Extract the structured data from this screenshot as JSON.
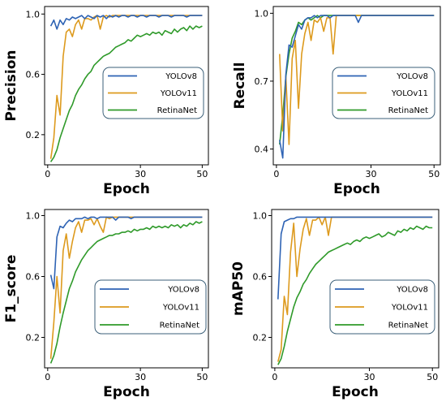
{
  "colors": {
    "YOLOv8": "#2e63b4",
    "YOLOv11": "#dd9a1d",
    "RetinaNet": "#2f9a2a"
  },
  "chart_data": [
    {
      "type": "line",
      "xlabel": "Epoch",
      "ylabel": "Precision",
      "xlim": [
        -1,
        52
      ],
      "ylim": [
        0.0,
        1.05
      ],
      "xticks": [
        0,
        30,
        50
      ],
      "yticks": [
        0.2,
        0.6,
        1.0
      ],
      "ytick_labels": [
        "0.2",
        "0.6",
        "1.0"
      ],
      "legend_location": "center-right",
      "x": [
        1,
        2,
        3,
        4,
        5,
        6,
        7,
        8,
        9,
        10,
        11,
        12,
        13,
        14,
        15,
        16,
        17,
        18,
        19,
        20,
        21,
        22,
        23,
        24,
        25,
        26,
        27,
        28,
        29,
        30,
        31,
        32,
        33,
        34,
        35,
        36,
        37,
        38,
        39,
        40,
        41,
        42,
        43,
        44,
        45,
        46,
        47,
        48,
        49,
        50
      ],
      "series": [
        {
          "name": "YOLOv8",
          "values": [
            0.92,
            0.96,
            0.9,
            0.96,
            0.93,
            0.97,
            0.96,
            0.98,
            0.97,
            0.98,
            0.99,
            0.97,
            0.99,
            0.98,
            0.97,
            0.99,
            0.98,
            0.99,
            0.97,
            0.99,
            0.98,
            0.99,
            0.98,
            0.99,
            0.99,
            0.98,
            0.99,
            0.99,
            0.98,
            0.99,
            0.99,
            0.98,
            0.99,
            0.99,
            0.99,
            0.98,
            0.99,
            0.99,
            0.99,
            0.98,
            0.99,
            0.99,
            0.99,
            0.99,
            0.98,
            0.99,
            0.99,
            0.99,
            0.99,
            0.99
          ]
        },
        {
          "name": "YOLOv11",
          "values": [
            0.04,
            0.18,
            0.46,
            0.33,
            0.72,
            0.88,
            0.9,
            0.85,
            0.93,
            0.96,
            0.9,
            0.97,
            0.97,
            0.96,
            0.98,
            0.99,
            0.9,
            0.98,
            0.99,
            0.98,
            0.99,
            0.99,
            0.99,
            0.99,
            0.99,
            0.99,
            0.99,
            0.99,
            0.99,
            0.99,
            0.99,
            0.99,
            0.99,
            0.99,
            0.99,
            0.99,
            0.99,
            0.99,
            0.99,
            0.99,
            0.99,
            0.99,
            0.99,
            0.99,
            0.99,
            0.99,
            0.99,
            0.99,
            0.99,
            0.99
          ]
        },
        {
          "name": "RetinaNet",
          "values": [
            0.02,
            0.05,
            0.1,
            0.18,
            0.24,
            0.3,
            0.36,
            0.4,
            0.46,
            0.5,
            0.53,
            0.57,
            0.6,
            0.62,
            0.66,
            0.68,
            0.7,
            0.72,
            0.73,
            0.74,
            0.76,
            0.78,
            0.79,
            0.8,
            0.81,
            0.83,
            0.82,
            0.84,
            0.86,
            0.85,
            0.86,
            0.87,
            0.86,
            0.88,
            0.87,
            0.88,
            0.86,
            0.89,
            0.88,
            0.87,
            0.9,
            0.88,
            0.9,
            0.91,
            0.89,
            0.92,
            0.9,
            0.92,
            0.91,
            0.92
          ]
        }
      ]
    },
    {
      "type": "line",
      "xlabel": "Epoch",
      "ylabel": "Recall",
      "xlim": [
        -1,
        52
      ],
      "ylim": [
        0.33,
        1.03
      ],
      "xticks": [
        0,
        30,
        50
      ],
      "yticks": [
        0.4,
        0.7,
        1.0
      ],
      "ytick_labels": [
        "0.4",
        "0.7",
        "1.0"
      ],
      "legend_location": "center-right",
      "x": [
        1,
        2,
        3,
        4,
        5,
        6,
        7,
        8,
        9,
        10,
        11,
        12,
        13,
        14,
        15,
        16,
        17,
        18,
        19,
        20,
        21,
        22,
        23,
        24,
        25,
        26,
        27,
        28,
        29,
        30,
        31,
        32,
        33,
        34,
        35,
        36,
        37,
        38,
        39,
        40,
        41,
        42,
        43,
        44,
        45,
        46,
        47,
        48,
        49,
        50
      ],
      "series": [
        {
          "name": "YOLOv8",
          "values": [
            0.44,
            0.36,
            0.73,
            0.86,
            0.85,
            0.9,
            0.95,
            0.93,
            0.97,
            0.98,
            0.98,
            0.99,
            0.98,
            0.99,
            0.99,
            0.99,
            0.98,
            0.99,
            0.99,
            0.99,
            0.99,
            0.99,
            0.99,
            0.99,
            0.99,
            0.96,
            0.99,
            0.99,
            0.99,
            0.99,
            0.99,
            0.99,
            0.99,
            0.99,
            0.99,
            0.99,
            0.99,
            0.99,
            0.99,
            0.99,
            0.99,
            0.99,
            0.99,
            0.99,
            0.99,
            0.99,
            0.99,
            0.99,
            0.99,
            0.99
          ]
        },
        {
          "name": "YOLOv11",
          "values": [
            0.82,
            0.48,
            0.72,
            0.42,
            0.8,
            0.88,
            0.58,
            0.82,
            0.91,
            0.96,
            0.88,
            0.97,
            0.96,
            0.98,
            0.92,
            0.98,
            0.98,
            0.82,
            0.99,
            0.99,
            0.99,
            0.99,
            0.99,
            0.99,
            0.99,
            0.99,
            0.99,
            0.99,
            0.99,
            0.99,
            0.99,
            0.99,
            0.99,
            0.99,
            0.99,
            0.99,
            0.99,
            0.99,
            0.99,
            0.99,
            0.99,
            0.99,
            0.99,
            0.99,
            0.99,
            0.99,
            0.99,
            0.99,
            0.99,
            0.99
          ]
        },
        {
          "name": "RetinaNet",
          "values": [
            0.42,
            0.55,
            0.72,
            0.82,
            0.89,
            0.92,
            0.96,
            0.95,
            0.97,
            0.98,
            0.97,
            0.98,
            0.99,
            0.98,
            0.99,
            0.99,
            0.99,
            0.99,
            0.99,
            0.99,
            0.99,
            0.99,
            0.99,
            0.99,
            0.99,
            0.99,
            0.99,
            0.99,
            0.99,
            0.99,
            0.99,
            0.99,
            0.99,
            0.99,
            0.99,
            0.99,
            0.99,
            0.99,
            0.99,
            0.99,
            0.99,
            0.99,
            0.99,
            0.99,
            0.99,
            0.99,
            0.99,
            0.99,
            0.99,
            0.99
          ]
        }
      ]
    },
    {
      "type": "line",
      "xlabel": "Epoch",
      "ylabel": "F1_score",
      "xlim": [
        -1,
        52
      ],
      "ylim": [
        0.0,
        1.04
      ],
      "xticks": [
        0,
        30,
        50
      ],
      "yticks": [
        0.2,
        0.6,
        1.0
      ],
      "ytick_labels": [
        "0.2",
        "0.6",
        "1.0"
      ],
      "legend_location": "center-right",
      "x": [
        1,
        2,
        3,
        4,
        5,
        6,
        7,
        8,
        9,
        10,
        11,
        12,
        13,
        14,
        15,
        16,
        17,
        18,
        19,
        20,
        21,
        22,
        23,
        24,
        25,
        26,
        27,
        28,
        29,
        30,
        31,
        32,
        33,
        34,
        35,
        36,
        37,
        38,
        39,
        40,
        41,
        42,
        43,
        44,
        45,
        46,
        47,
        48,
        49,
        50
      ],
      "series": [
        {
          "name": "YOLOv8",
          "values": [
            0.61,
            0.52,
            0.86,
            0.93,
            0.92,
            0.95,
            0.97,
            0.96,
            0.98,
            0.98,
            0.98,
            0.99,
            0.98,
            0.99,
            0.99,
            0.98,
            0.99,
            0.99,
            0.99,
            0.99,
            0.99,
            0.97,
            0.99,
            0.99,
            0.99,
            0.99,
            0.98,
            0.99,
            0.99,
            0.99,
            0.99,
            0.99,
            0.99,
            0.99,
            0.99,
            0.99,
            0.99,
            0.99,
            0.99,
            0.99,
            0.99,
            0.99,
            0.99,
            0.99,
            0.99,
            0.99,
            0.99,
            0.99,
            0.99,
            0.99
          ]
        },
        {
          "name": "YOLOv11",
          "values": [
            0.06,
            0.3,
            0.6,
            0.36,
            0.77,
            0.88,
            0.72,
            0.83,
            0.92,
            0.96,
            0.89,
            0.97,
            0.97,
            0.98,
            0.94,
            0.98,
            0.93,
            0.89,
            0.99,
            0.98,
            0.99,
            0.99,
            0.99,
            0.99,
            0.99,
            0.99,
            0.99,
            0.99,
            0.99,
            0.99,
            0.99,
            0.99,
            0.99,
            0.99,
            0.99,
            0.99,
            0.99,
            0.99,
            0.99,
            0.99,
            0.99,
            0.99,
            0.99,
            0.99,
            0.99,
            0.99,
            0.99,
            0.99,
            0.99,
            0.99
          ]
        },
        {
          "name": "RetinaNet",
          "values": [
            0.03,
            0.08,
            0.16,
            0.27,
            0.36,
            0.44,
            0.52,
            0.57,
            0.63,
            0.67,
            0.71,
            0.74,
            0.77,
            0.79,
            0.81,
            0.83,
            0.84,
            0.85,
            0.86,
            0.87,
            0.87,
            0.88,
            0.88,
            0.89,
            0.89,
            0.9,
            0.89,
            0.91,
            0.9,
            0.91,
            0.91,
            0.92,
            0.91,
            0.93,
            0.92,
            0.93,
            0.92,
            0.93,
            0.92,
            0.94,
            0.93,
            0.94,
            0.92,
            0.94,
            0.93,
            0.95,
            0.94,
            0.96,
            0.95,
            0.96
          ]
        }
      ]
    },
    {
      "type": "line",
      "xlabel": "Epoch",
      "ylabel": "mAP50",
      "xlim": [
        -1,
        52
      ],
      "ylim": [
        0.0,
        1.04
      ],
      "xticks": [
        0,
        30,
        50
      ],
      "yticks": [
        0.2,
        0.6,
        1.0
      ],
      "ytick_labels": [
        "0.2",
        "0.6",
        "1.0"
      ],
      "legend_location": "center-right",
      "x": [
        1,
        2,
        3,
        4,
        5,
        6,
        7,
        8,
        9,
        10,
        11,
        12,
        13,
        14,
        15,
        16,
        17,
        18,
        19,
        20,
        21,
        22,
        23,
        24,
        25,
        26,
        27,
        28,
        29,
        30,
        31,
        32,
        33,
        34,
        35,
        36,
        37,
        38,
        39,
        40,
        41,
        42,
        43,
        44,
        45,
        46,
        47,
        48,
        49,
        50
      ],
      "series": [
        {
          "name": "YOLOv8",
          "values": [
            0.45,
            0.88,
            0.96,
            0.97,
            0.98,
            0.98,
            0.99,
            0.99,
            0.99,
            0.99,
            0.99,
            0.99,
            0.99,
            0.99,
            0.99,
            0.99,
            0.99,
            0.99,
            0.99,
            0.99,
            0.99,
            0.99,
            0.99,
            0.99,
            0.99,
            0.99,
            0.99,
            0.99,
            0.99,
            0.99,
            0.99,
            0.99,
            0.99,
            0.99,
            0.99,
            0.99,
            0.99,
            0.99,
            0.99,
            0.99,
            0.99,
            0.99,
            0.99,
            0.99,
            0.99,
            0.99,
            0.99,
            0.99,
            0.99,
            0.99
          ]
        },
        {
          "name": "YOLOv11",
          "values": [
            0.04,
            0.12,
            0.47,
            0.35,
            0.76,
            0.95,
            0.6,
            0.78,
            0.91,
            0.98,
            0.87,
            0.97,
            0.97,
            0.99,
            0.94,
            0.99,
            0.87,
            0.99,
            0.99,
            0.99,
            0.99,
            0.99,
            0.99,
            0.99,
            0.99,
            0.99,
            0.99,
            0.99,
            0.99,
            0.99,
            0.99,
            0.99,
            0.99,
            0.99,
            0.99,
            0.99,
            0.99,
            0.99,
            0.99,
            0.99,
            0.99,
            0.99,
            0.99,
            0.99,
            0.99,
            0.99,
            0.99,
            0.99,
            0.99,
            0.99
          ]
        },
        {
          "name": "RetinaNet",
          "values": [
            0.02,
            0.06,
            0.14,
            0.24,
            0.32,
            0.4,
            0.46,
            0.5,
            0.55,
            0.58,
            0.62,
            0.65,
            0.68,
            0.7,
            0.72,
            0.74,
            0.76,
            0.77,
            0.78,
            0.79,
            0.8,
            0.81,
            0.82,
            0.81,
            0.83,
            0.84,
            0.83,
            0.85,
            0.86,
            0.85,
            0.86,
            0.87,
            0.88,
            0.86,
            0.87,
            0.89,
            0.88,
            0.87,
            0.9,
            0.89,
            0.91,
            0.9,
            0.92,
            0.91,
            0.93,
            0.92,
            0.91,
            0.93,
            0.92,
            0.92
          ]
        }
      ]
    }
  ]
}
